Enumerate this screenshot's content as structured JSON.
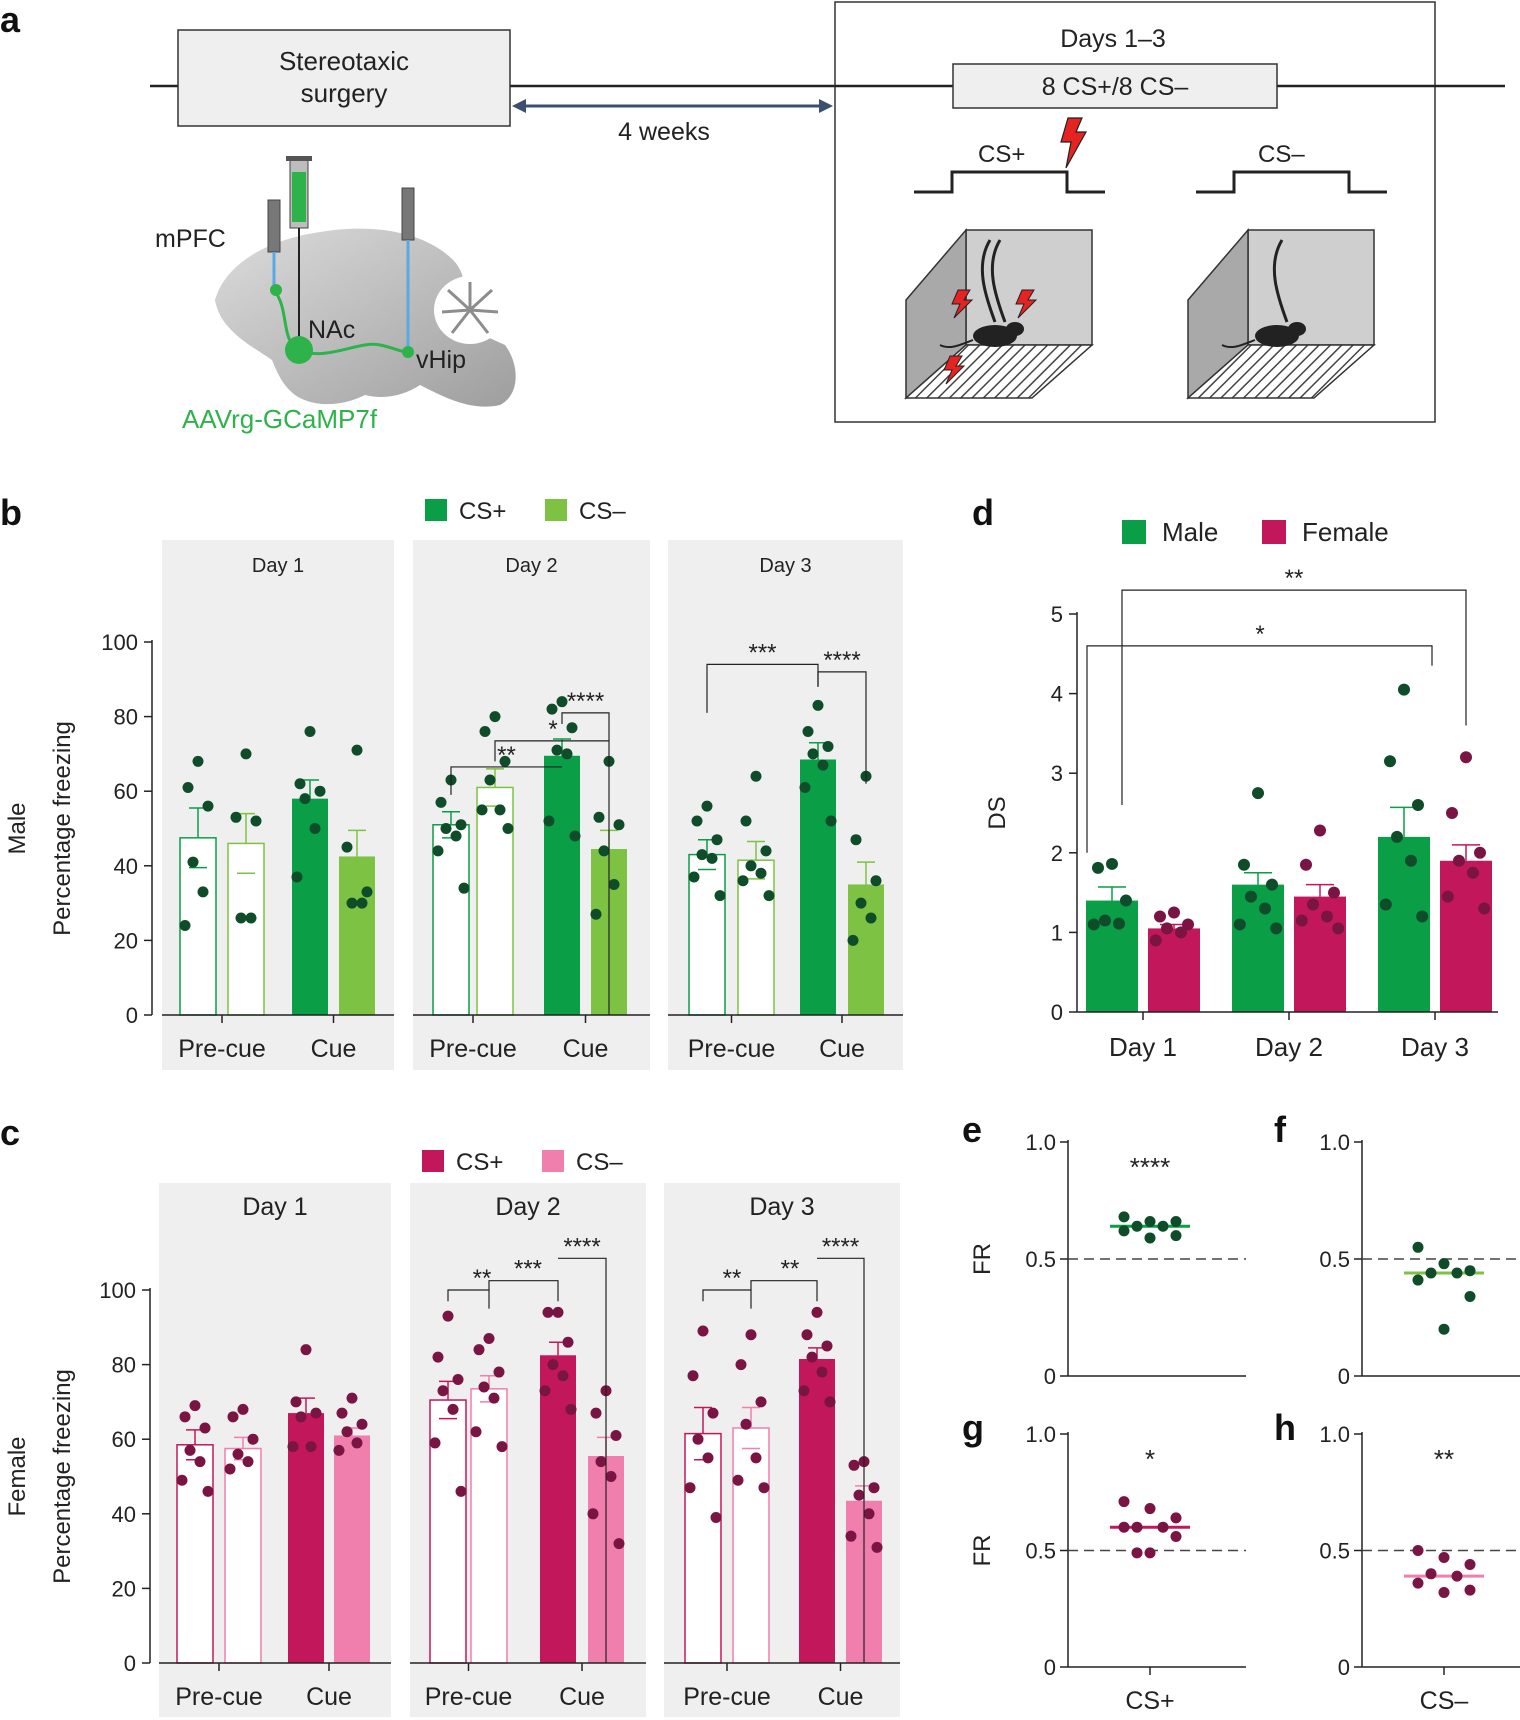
{
  "panel_letters": {
    "a": "a",
    "b": "b",
    "c": "c",
    "d": "d",
    "e": "e",
    "f": "f",
    "g": "g",
    "h": "h"
  },
  "colors": {
    "green_dark": "#0a9e47",
    "green_light": "#7dc242",
    "dot_green": "#0f4d2a",
    "magenta": "#c2185b",
    "pink": "#f07fae",
    "dot_magenta": "#7a1443",
    "panel_bg": "#efefef",
    "arrow": "#3d4f6e",
    "virus_green": "#2db34a"
  },
  "schematic": {
    "surgery_label_line1": "Stereotaxic",
    "surgery_label_line2": "surgery",
    "interval_label": "4 weeks",
    "days_label": "Days 1–3",
    "trials_label": "8 CS+/8 CS–",
    "cs_plus_label": "CS+",
    "cs_minus_label": "CS–",
    "region_mpfc": "mPFC",
    "region_nac": "NAc",
    "region_vhip": "vHip",
    "virus_label": "AAVrg-GCaMP7f"
  },
  "chart_data": [
    {
      "id": "b",
      "type": "bar",
      "row_label": "Male",
      "ylabel": "Percentage freezing",
      "ylim": [
        0,
        100
      ],
      "yticks": [
        0,
        20,
        40,
        60,
        80,
        100
      ],
      "legend": [
        "CS+",
        "CS–"
      ],
      "groups": [
        "Pre-cue",
        "Cue"
      ],
      "days": [
        {
          "label": "Day 1",
          "bars": [
            {
              "group": "Pre-cue",
              "cs": "CS+",
              "mean": 47.5,
              "sem": 8,
              "points": [
                68,
                61,
                56,
                41,
                33,
                24
              ]
            },
            {
              "group": "Pre-cue",
              "cs": "CS–",
              "mean": 46,
              "sem": 8,
              "points": [
                70,
                53,
                52,
                26,
                26
              ]
            },
            {
              "group": "Cue",
              "cs": "CS+",
              "mean": 58,
              "sem": 5,
              "points": [
                76,
                62,
                60,
                58,
                50,
                37
              ]
            },
            {
              "group": "Cue",
              "cs": "CS–",
              "mean": 42.5,
              "sem": 7,
              "points": [
                71,
                45,
                33,
                30,
                30
              ]
            }
          ],
          "sig": []
        },
        {
          "label": "Day 2",
          "bars": [
            {
              "group": "Pre-cue",
              "cs": "CS+",
              "mean": 51,
              "sem": 3.5,
              "points": [
                63,
                57,
                51,
                50,
                48,
                44,
                34
              ]
            },
            {
              "group": "Pre-cue",
              "cs": "CS–",
              "mean": 61,
              "sem": 5,
              "points": [
                80,
                76,
                68,
                63,
                55,
                55,
                50
              ]
            },
            {
              "group": "Cue",
              "cs": "CS+",
              "mean": 69.5,
              "sem": 4.5,
              "points": [
                84,
                82,
                77,
                71,
                70,
                52,
                48
              ]
            },
            {
              "group": "Cue",
              "cs": "CS–",
              "mean": 44.5,
              "sem": 5,
              "points": [
                68,
                53,
                51,
                44,
                35,
                27
              ]
            }
          ],
          "sig": [
            "**",
            "*",
            "****"
          ]
        },
        {
          "label": "Day 3",
          "bars": [
            {
              "group": "Pre-cue",
              "cs": "CS+",
              "mean": 43,
              "sem": 4,
              "points": [
                56,
                52,
                47,
                43,
                42,
                37,
                32
              ]
            },
            {
              "group": "Pre-cue",
              "cs": "CS–",
              "mean": 41.5,
              "sem": 5,
              "points": [
                64,
                52,
                44,
                40,
                38,
                36,
                32
              ]
            },
            {
              "group": "Cue",
              "cs": "CS+",
              "mean": 68.5,
              "sem": 4.5,
              "points": [
                83,
                76,
                72,
                70,
                67,
                61,
                52
              ]
            },
            {
              "group": "Cue",
              "cs": "CS–",
              "mean": 35,
              "sem": 6,
              "points": [
                64,
                47,
                36,
                30,
                26,
                20
              ]
            }
          ],
          "sig": [
            "***",
            "****"
          ]
        }
      ]
    },
    {
      "id": "c",
      "type": "bar",
      "row_label": "Female",
      "ylabel": "Percentage freezing",
      "ylim": [
        0,
        100
      ],
      "yticks": [
        0,
        20,
        40,
        60,
        80,
        100
      ],
      "legend": [
        "CS+",
        "CS–"
      ],
      "groups": [
        "Pre-cue",
        "Cue"
      ],
      "days": [
        {
          "label": "Day 1",
          "bars": [
            {
              "group": "Pre-cue",
              "cs": "CS+",
              "mean": 58.5,
              "sem": 4,
              "points": [
                69,
                66,
                63,
                57,
                54,
                49,
                46
              ]
            },
            {
              "group": "Pre-cue",
              "cs": "CS–",
              "mean": 57.5,
              "sem": 3,
              "points": [
                68,
                66,
                60,
                56,
                54,
                52
              ]
            },
            {
              "group": "Cue",
              "cs": "CS+",
              "mean": 67,
              "sem": 4,
              "points": [
                84,
                70,
                67,
                66,
                58,
                58
              ]
            },
            {
              "group": "Cue",
              "cs": "CS–",
              "mean": 61,
              "sem": 2,
              "points": [
                71,
                67,
                64,
                62,
                59,
                57
              ]
            }
          ],
          "sig": []
        },
        {
          "label": "Day 2",
          "bars": [
            {
              "group": "Pre-cue",
              "cs": "CS+",
              "mean": 70.5,
              "sem": 5,
              "points": [
                93,
                82,
                76,
                73,
                68,
                59,
                46
              ]
            },
            {
              "group": "Pre-cue",
              "cs": "CS–",
              "mean": 73.5,
              "sem": 3.5,
              "points": [
                87,
                84,
                78,
                74,
                71,
                62,
                58
              ]
            },
            {
              "group": "Cue",
              "cs": "CS+",
              "mean": 82.5,
              "sem": 3.5,
              "points": [
                94,
                94,
                86,
                80,
                77,
                73,
                68
              ]
            },
            {
              "group": "Cue",
              "cs": "CS–",
              "mean": 55.5,
              "sem": 5,
              "points": [
                73,
                67,
                61,
                54,
                50,
                40,
                32
              ]
            }
          ],
          "sig": [
            "**",
            "***",
            "****"
          ]
        },
        {
          "label": "Day 3",
          "bars": [
            {
              "group": "Pre-cue",
              "cs": "CS+",
              "mean": 61.5,
              "sem": 7,
              "points": [
                89,
                77,
                67,
                60,
                55,
                47,
                39
              ]
            },
            {
              "group": "Pre-cue",
              "cs": "CS–",
              "mean": 63,
              "sem": 5.5,
              "points": [
                88,
                80,
                70,
                64,
                55,
                49,
                47
              ]
            },
            {
              "group": "Cue",
              "cs": "CS+",
              "mean": 81.5,
              "sem": 3,
              "points": [
                94,
                88,
                85,
                82,
                78,
                73,
                70
              ]
            },
            {
              "group": "Cue",
              "cs": "CS–",
              "mean": 43.5,
              "sem": 4,
              "points": [
                54,
                53,
                47,
                45,
                40,
                34,
                31
              ]
            }
          ],
          "sig": [
            "**",
            "**",
            "****"
          ]
        }
      ]
    },
    {
      "id": "d",
      "type": "bar",
      "ylabel": "DS",
      "ylim": [
        0,
        5
      ],
      "yticks": [
        0,
        1,
        2,
        3,
        4,
        5
      ],
      "legend": [
        "Male",
        "Female"
      ],
      "categories": [
        "Day 1",
        "Day 2",
        "Day 3"
      ],
      "series": [
        {
          "name": "Male",
          "values": [
            1.4,
            1.6,
            2.2
          ],
          "sem": [
            0.17,
            0.15,
            0.37
          ],
          "points": [
            [
              1.86,
              1.81,
              1.4,
              1.15,
              1.11,
              1.1
            ],
            [
              2.75,
              1.85,
              1.6,
              1.45,
              1.3,
              1.1,
              1.05
            ],
            [
              4.05,
              3.15,
              2.6,
              2.2,
              1.9,
              1.35,
              1.2
            ]
          ]
        },
        {
          "name": "Female",
          "values": [
            1.05,
            1.45,
            1.9
          ],
          "sem": [
            0.05,
            0.15,
            0.2
          ],
          "points": [
            [
              1.25,
              1.2,
              1.1,
              1.05,
              1.0,
              0.9
            ],
            [
              2.28,
              1.85,
              1.5,
              1.35,
              1.2,
              1.15,
              1.05
            ],
            [
              3.2,
              2.5,
              2.0,
              1.9,
              1.75,
              1.45,
              1.3
            ]
          ]
        }
      ],
      "sig": [
        "**",
        "*"
      ]
    },
    {
      "id": "e",
      "type": "scatter",
      "ylabel": "FR",
      "category": "CS+",
      "ylim": [
        0,
        1.0
      ],
      "yticks": [
        "0",
        "0.5",
        "1.0"
      ],
      "reference_line": 0.5,
      "median": 0.64,
      "points": [
        0.68,
        0.66,
        0.66,
        0.64,
        0.64,
        0.62,
        0.6,
        0.59
      ],
      "sig": "****"
    },
    {
      "id": "f",
      "type": "scatter",
      "ylabel": "",
      "category": "CS–",
      "ylim": [
        0,
        1.0
      ],
      "yticks": [
        "0",
        "0.5",
        "1.0"
      ],
      "reference_line": 0.5,
      "median": 0.44,
      "points": [
        0.55,
        0.48,
        0.45,
        0.44,
        0.44,
        0.41,
        0.34,
        0.2
      ],
      "sig": ""
    },
    {
      "id": "g",
      "type": "scatter",
      "ylabel": "FR",
      "category": "CS+",
      "ylim": [
        0,
        1.0
      ],
      "yticks": [
        "0",
        "0.5",
        "1.0"
      ],
      "reference_line": 0.5,
      "median": 0.6,
      "points": [
        0.71,
        0.68,
        0.64,
        0.6,
        0.6,
        0.6,
        0.56,
        0.49,
        0.49
      ],
      "sig": "*"
    },
    {
      "id": "h",
      "type": "scatter",
      "ylabel": "",
      "category": "CS–",
      "ylim": [
        0,
        1.0
      ],
      "yticks": [
        "0",
        "0.5",
        "1.0"
      ],
      "reference_line": 0.5,
      "median": 0.39,
      "points": [
        0.5,
        0.47,
        0.44,
        0.4,
        0.39,
        0.36,
        0.33,
        0.32
      ],
      "sig": "**"
    }
  ]
}
